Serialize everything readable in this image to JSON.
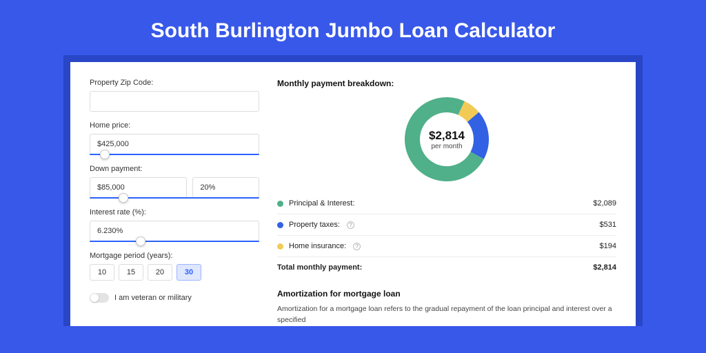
{
  "page": {
    "title": "South Burlington Jumbo Loan Calculator",
    "background_color": "#3858e9",
    "shadow_color": "#2946c7",
    "card_color": "#ffffff"
  },
  "form": {
    "zip": {
      "label": "Property Zip Code:",
      "value": ""
    },
    "home_price": {
      "label": "Home price:",
      "value": "$425,000",
      "slider_pct": 9
    },
    "down_payment": {
      "label": "Down payment:",
      "value": "$85,000",
      "percent": "20%",
      "slider_pct": 20
    },
    "interest_rate": {
      "label": "Interest rate (%):",
      "value": "6.230%",
      "slider_pct": 30
    },
    "mortgage_period": {
      "label": "Mortgage period (years):",
      "options": [
        "10",
        "15",
        "20",
        "30"
      ],
      "selected": "30"
    },
    "veteran": {
      "label": "I am veteran or military",
      "checked": false
    }
  },
  "breakdown": {
    "title": "Monthly payment breakdown:",
    "center_amount": "$2,814",
    "center_sub": "per month",
    "items": [
      {
        "label": "Principal & Interest:",
        "value": "$2,089",
        "color": "#4fb08a",
        "has_info": false
      },
      {
        "label": "Property taxes:",
        "value": "$531",
        "color": "#3261e3",
        "has_info": true
      },
      {
        "label": "Home insurance:",
        "value": "$194",
        "color": "#f2cb57",
        "has_info": true
      }
    ],
    "total": {
      "label": "Total monthly payment:",
      "value": "$2,814"
    },
    "donut": {
      "type": "donut",
      "radius": 50,
      "stroke_width": 22,
      "background_color": "#ffffff",
      "slices": [
        {
          "fraction": 0.742,
          "color": "#4fb08a"
        },
        {
          "fraction": 0.189,
          "color": "#3261e3"
        },
        {
          "fraction": 0.069,
          "color": "#f2cb57"
        }
      ]
    }
  },
  "amortization": {
    "title": "Amortization for mortgage loan",
    "text": "Amortization for a mortgage loan refers to the gradual repayment of the loan principal and interest over a specified"
  }
}
